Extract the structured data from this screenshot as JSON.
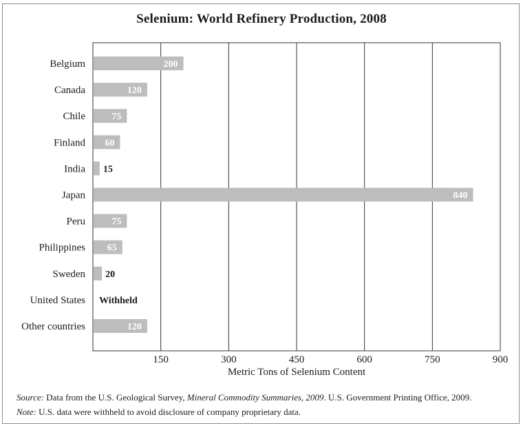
{
  "chart_data": {
    "type": "bar",
    "orientation": "horizontal",
    "title": "Selenium: World Refinery Production, 2008",
    "xlabel": "Metric Tons of Selenium Content",
    "ylabel": "",
    "xlim": [
      0,
      900
    ],
    "xticks": [
      150,
      300,
      450,
      600,
      750,
      900
    ],
    "grid": true,
    "categories": [
      "Belgium",
      "Canada",
      "Chile",
      "Finland",
      "India",
      "Japan",
      "Peru",
      "Philippines",
      "Sweden",
      "United States",
      "Other countries"
    ],
    "values": [
      200,
      120,
      75,
      60,
      15,
      840,
      75,
      65,
      20,
      null,
      120
    ],
    "value_labels": [
      "200",
      "120",
      "75",
      "60",
      "15",
      "840",
      "75",
      "65",
      "20",
      "Withheld",
      "120"
    ],
    "bar_color": "#bdbdbd"
  },
  "notes": {
    "source_label": "Source:",
    "source_text_1": " Data from the U.S. Geological Survey, ",
    "source_italic": "Mineral Commodity Summaries, 2009",
    "source_text_2": ". U.S. Government Printing Office, 2009.",
    "note_label": "Note:",
    "note_text": " U.S. data were withheld to avoid disclosure of company proprietary data."
  }
}
